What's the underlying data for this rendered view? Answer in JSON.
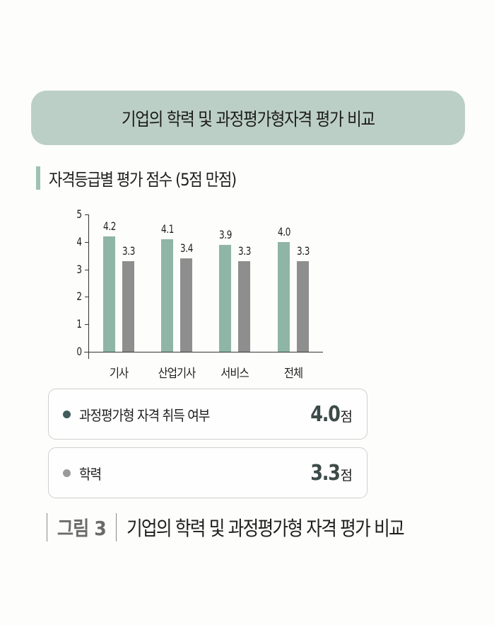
{
  "banner": {
    "title": "기업의 학력 및 과정평가형자격 평가 비교"
  },
  "subhead": {
    "title": "자격등급별 평가 점수 (5점 만점)"
  },
  "colors": {
    "banner_bg": "#bccfc6",
    "accent_bar": "#9fc2b5",
    "series_green": "#8fb5a6",
    "series_gray": "#8e8e8e",
    "dot_dark": "#3f5b5a",
    "dot_gray": "#9a9a9a"
  },
  "chart_data": {
    "type": "bar",
    "title": "자격등급별 평가 점수 (5점 만점)",
    "xlabel": "",
    "ylabel": "",
    "ylim": [
      0,
      5
    ],
    "yticks": [
      "0",
      "1",
      "2",
      "3",
      "4",
      "5"
    ],
    "categories": [
      "기사",
      "산업기사",
      "서비스",
      "전체"
    ],
    "series": [
      {
        "name": "과정평가형 자격 취득 여부",
        "color": "#8fb5a6",
        "values": [
          4.2,
          4.1,
          3.9,
          4.0
        ],
        "labels": [
          "4.2",
          "4.1",
          "3.9",
          "4.0"
        ]
      },
      {
        "name": "학력",
        "color": "#8e8e8e",
        "values": [
          3.3,
          3.4,
          3.3,
          3.3
        ],
        "labels": [
          "3.3",
          "3.4",
          "3.3",
          "3.3"
        ]
      }
    ],
    "grid": false,
    "legend": "none"
  },
  "summary": [
    {
      "label": "과정평가형 자격 취득 여부",
      "value": "4.0",
      "unit": "점",
      "dot_color": "#3f5b5a"
    },
    {
      "label": "학력",
      "value": "3.3",
      "unit": "점",
      "dot_color": "#9a9a9a"
    }
  ],
  "caption": {
    "label": "그림 3",
    "text": "기업의 학력 및 과정평가형 자격 평가 비교"
  }
}
